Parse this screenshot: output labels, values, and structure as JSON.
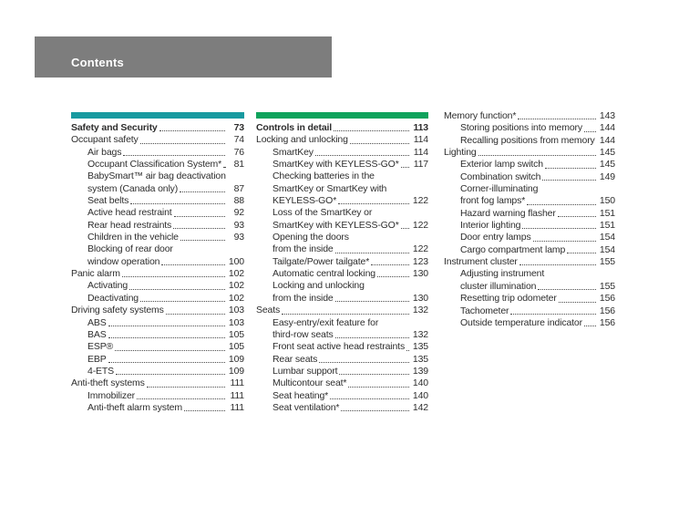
{
  "header": {
    "title": "Contents",
    "bar_color": "#7d7d7d",
    "text_color": "#ffffff"
  },
  "columns": [
    {
      "bar_color": "#189aa0",
      "rows": [
        {
          "text": "Safety and Security",
          "page": "73",
          "level": 1,
          "bold": true
        },
        {
          "text": "Occupant safety",
          "page": "74",
          "level": 1
        },
        {
          "text": "Air bags",
          "page": "76",
          "level": 2
        },
        {
          "text": "Occupant Classification System*",
          "page": "81",
          "level": 2
        },
        {
          "text": "BabySmart™ air bag deactivation",
          "page": null,
          "level": 2
        },
        {
          "text": "system (Canada only)",
          "page": "87",
          "level": 2
        },
        {
          "text": "Seat belts",
          "page": "88",
          "level": 2
        },
        {
          "text": "Active head restraint",
          "page": "92",
          "level": 2
        },
        {
          "text": "Rear head restraints",
          "page": "93",
          "level": 2
        },
        {
          "text": "Children in the vehicle",
          "page": "93",
          "level": 2
        },
        {
          "text": "Blocking of rear door",
          "page": null,
          "level": 2
        },
        {
          "text": "window operation",
          "page": "100",
          "level": 2
        },
        {
          "text": "Panic alarm",
          "page": "102",
          "level": 1
        },
        {
          "text": "Activating",
          "page": "102",
          "level": 2
        },
        {
          "text": "Deactivating",
          "page": "102",
          "level": 2
        },
        {
          "text": "Driving safety systems",
          "page": "103",
          "level": 1
        },
        {
          "text": "ABS",
          "page": "103",
          "level": 2
        },
        {
          "text": "BAS",
          "page": "105",
          "level": 2
        },
        {
          "text": "ESP®",
          "page": "105",
          "level": 2
        },
        {
          "text": "EBP",
          "page": "109",
          "level": 2
        },
        {
          "text": "4-ETS",
          "page": "109",
          "level": 2
        },
        {
          "text": "Anti-theft systems",
          "page": "111",
          "level": 1
        },
        {
          "text": "Immobilizer",
          "page": "111",
          "level": 2
        },
        {
          "text": "Anti-theft alarm system",
          "page": "111",
          "level": 2
        }
      ]
    },
    {
      "bar_color": "#0fa35c",
      "rows": [
        {
          "text": "Controls in detail",
          "page": "113",
          "level": 1,
          "bold": true
        },
        {
          "text": "Locking and unlocking",
          "page": "114",
          "level": 1
        },
        {
          "text": "SmartKey",
          "page": "114",
          "level": 2
        },
        {
          "text": "SmartKey with KEYLESS-GO*",
          "page": "117",
          "level": 2
        },
        {
          "text": "Checking batteries in the",
          "page": null,
          "level": 2
        },
        {
          "text": "SmartKey or SmartKey with",
          "page": null,
          "level": 2
        },
        {
          "text": "KEYLESS-GO*",
          "page": "122",
          "level": 2
        },
        {
          "text": "Loss of the SmartKey or",
          "page": null,
          "level": 2
        },
        {
          "text": "SmartKey with KEYLESS-GO*",
          "page": "122",
          "level": 2
        },
        {
          "text": "Opening the doors",
          "page": null,
          "level": 2
        },
        {
          "text": "from the inside",
          "page": "122",
          "level": 2
        },
        {
          "text": "Tailgate/Power tailgate*",
          "page": "123",
          "level": 2
        },
        {
          "text": "Automatic central locking",
          "page": "130",
          "level": 2
        },
        {
          "text": "Locking and unlocking",
          "page": null,
          "level": 2
        },
        {
          "text": "from the inside",
          "page": "130",
          "level": 2
        },
        {
          "text": "Seats",
          "page": "132",
          "level": 1
        },
        {
          "text": "Easy-entry/exit feature for",
          "page": null,
          "level": 2
        },
        {
          "text": "third-row seats",
          "page": "132",
          "level": 2
        },
        {
          "text": "Front seat active head restraints",
          "page": "135",
          "level": 2
        },
        {
          "text": "Rear seats",
          "page": "135",
          "level": 2
        },
        {
          "text": "Lumbar support",
          "page": "139",
          "level": 2
        },
        {
          "text": "Multicontour seat*",
          "page": "140",
          "level": 2
        },
        {
          "text": "Seat heating*",
          "page": "140",
          "level": 2
        },
        {
          "text": "Seat ventilation*",
          "page": "142",
          "level": 2
        }
      ]
    },
    {
      "bar_color": null,
      "rows": [
        {
          "text": "Memory function*",
          "page": "143",
          "level": 1
        },
        {
          "text": "Storing positions into memory",
          "page": "144",
          "level": 2
        },
        {
          "text": "Recalling positions from memory",
          "page": "144",
          "level": 2
        },
        {
          "text": "Lighting",
          "page": "145",
          "level": 1
        },
        {
          "text": "Exterior lamp switch",
          "page": "145",
          "level": 2
        },
        {
          "text": "Combination switch",
          "page": "149",
          "level": 2
        },
        {
          "text": "Corner-illuminating",
          "page": null,
          "level": 2
        },
        {
          "text": "front fog lamps*",
          "page": "150",
          "level": 2
        },
        {
          "text": "Hazard warning flasher",
          "page": "151",
          "level": 2
        },
        {
          "text": "Interior lighting",
          "page": "151",
          "level": 2
        },
        {
          "text": "Door entry lamps",
          "page": "154",
          "level": 2
        },
        {
          "text": "Cargo compartment lamp",
          "page": "154",
          "level": 2
        },
        {
          "text": "Instrument cluster",
          "page": "155",
          "level": 1
        },
        {
          "text": "Adjusting instrument",
          "page": null,
          "level": 2
        },
        {
          "text": "cluster illumination",
          "page": "155",
          "level": 2
        },
        {
          "text": "Resetting trip odometer",
          "page": "156",
          "level": 2
        },
        {
          "text": "Tachometer",
          "page": "156",
          "level": 2
        },
        {
          "text": "Outside temperature indicator",
          "page": "156",
          "level": 2
        }
      ]
    }
  ]
}
